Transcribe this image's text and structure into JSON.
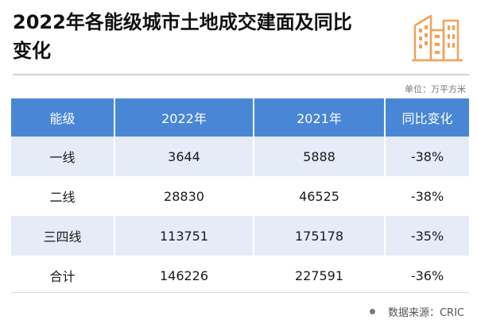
{
  "title": "2022年各能级城市土地成交建面及同比变化",
  "unit": "单位：万平方米",
  "table": {
    "headers": [
      "能级",
      "2022年",
      "2021年",
      "同比变化"
    ],
    "rows": [
      [
        "一线",
        "3644",
        "5888",
        "-38%"
      ],
      [
        "二线",
        "28830",
        "46525",
        "-38%"
      ],
      [
        "三四线",
        "113751",
        "175178",
        "-35%"
      ],
      [
        "合计",
        "146226",
        "227591",
        "-36%"
      ]
    ]
  },
  "source": "数据来源：CRIC",
  "colors": {
    "header_bg": "#4a86d6",
    "stripe_bg": "#e5ecf8",
    "logo": "#f0a15a"
  },
  "icons": {
    "logo": "city-buildings-icon",
    "bullet": "dot-icon"
  }
}
